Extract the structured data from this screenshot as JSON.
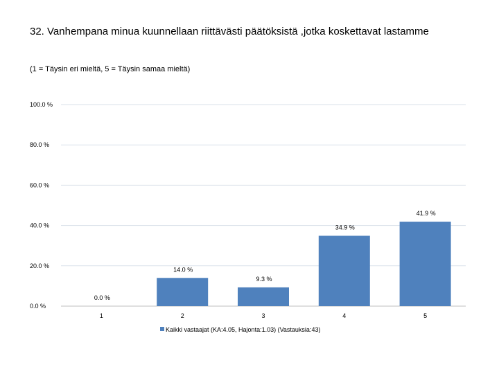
{
  "title": "32. Vanhempana minua kuunnellaan riittävästi päätöksistä ,jotka koskettavat lastamme",
  "subtitle": "(1 = Täysin eri mieltä, 5 = Täysin samaa mieltä)",
  "colors": {
    "bar": "#4f81bd",
    "grid": "#d9e1ea"
  },
  "chart_data": {
    "type": "bar",
    "categories": [
      "1",
      "2",
      "3",
      "4",
      "5"
    ],
    "series": [
      {
        "name": "Kaikki vastaajat (KA:4.05, Hajonta:1.03) (Vastauksia:43)",
        "values": [
          0.0,
          14.0,
          9.3,
          34.9,
          41.9
        ]
      }
    ],
    "data_labels": [
      "0.0 %",
      "14.0 %",
      "9.3 %",
      "34.9 %",
      "41.9 %"
    ],
    "yticks": [
      0,
      20,
      40,
      60,
      80,
      100
    ],
    "ytick_labels": [
      "0.0 %",
      "20.0 %",
      "40.0 %",
      "60.0 %",
      "80.0 %",
      "100.0 %"
    ],
    "ylim": [
      0,
      100
    ],
    "grid": true,
    "legend": "bottom"
  }
}
